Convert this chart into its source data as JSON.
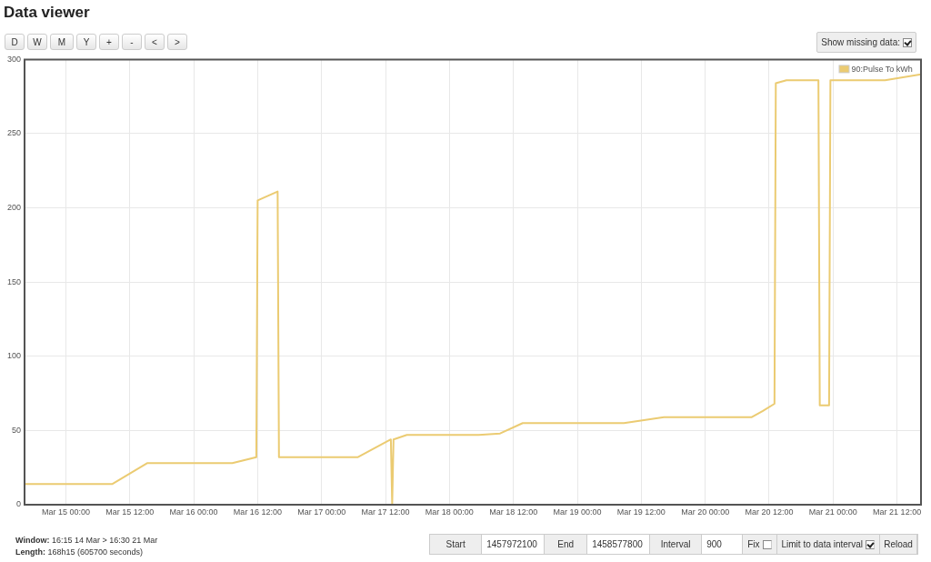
{
  "chart_data": {
    "type": "line",
    "title": "Data viewer",
    "x": [
      "--03-14T16:15",
      "--03-15T08:45",
      "--03-15T15:15",
      "--03-16T07:15",
      "--03-16T11:45",
      "--03-16T12:00",
      "--03-16T15:45",
      "--03-16T16:00",
      "--03-17T06:45",
      "--03-17T13:00",
      "--03-17T13:15",
      "--03-17T13:30",
      "--03-17T16:00",
      "--03-18T05:30",
      "--03-18T09:30",
      "--03-18T13:45",
      "--03-19T08:45",
      "--03-19T16:15",
      "--03-20T08:45",
      "--03-20T10:45",
      "--03-20T13:00",
      "--03-20T13:15",
      "--03-20T15:15",
      "--03-20T21:15",
      "--03-20T21:30",
      "--03-20T23:15",
      "--03-20T23:30",
      "--03-21T09:45",
      "--03-21T16:30"
    ],
    "series": [
      {
        "name": "90:Pulse To kWh",
        "color": "#ebcb72",
        "values": [
          14,
          14,
          28,
          28,
          32,
          205,
          211,
          32,
          32,
          44,
          0,
          44,
          47,
          47,
          48,
          55,
          55,
          59,
          59,
          63,
          68,
          284,
          286,
          286,
          67,
          67,
          286,
          286,
          290
        ]
      }
    ],
    "xlim": [
      "--03-14T16:15",
      "--03-21T16:30"
    ],
    "xticks": [
      {
        "value": "--03-15T00:00",
        "label": "Mar 15 00:00"
      },
      {
        "value": "--03-15T12:00",
        "label": "Mar 15 12:00"
      },
      {
        "value": "--03-16T00:00",
        "label": "Mar 16 00:00"
      },
      {
        "value": "--03-16T12:00",
        "label": "Mar 16 12:00"
      },
      {
        "value": "--03-17T00:00",
        "label": "Mar 17 00:00"
      },
      {
        "value": "--03-17T12:00",
        "label": "Mar 17 12:00"
      },
      {
        "value": "--03-18T00:00",
        "label": "Mar 18 00:00"
      },
      {
        "value": "--03-18T12:00",
        "label": "Mar 18 12:00"
      },
      {
        "value": "--03-19T00:00",
        "label": "Mar 19 00:00"
      },
      {
        "value": "--03-19T12:00",
        "label": "Mar 19 12:00"
      },
      {
        "value": "--03-20T00:00",
        "label": "Mar 20 00:00"
      },
      {
        "value": "--03-20T12:00",
        "label": "Mar 20 12:00"
      },
      {
        "value": "--03-21T00:00",
        "label": "Mar 21 00:00"
      },
      {
        "value": "--03-21T12:00",
        "label": "Mar 21 12:00"
      }
    ],
    "ylim": [
      0,
      300
    ],
    "yticks": [
      0,
      50,
      100,
      150,
      200,
      250,
      300
    ],
    "grid": true,
    "legend": "top right",
    "annotations": [
      "D",
      "W",
      "M",
      "Y",
      "+",
      "-",
      "<",
      ">",
      "Show missing data:",
      "Window: 16:15 14 Mar > 16:30 21 Mar",
      "Length: 168h15 (605700 seconds)",
      "Start",
      "1457972100",
      "End",
      "1458577800",
      "Interval",
      "900",
      "Fix",
      "Limit to data interval",
      "Reload"
    ]
  }
}
